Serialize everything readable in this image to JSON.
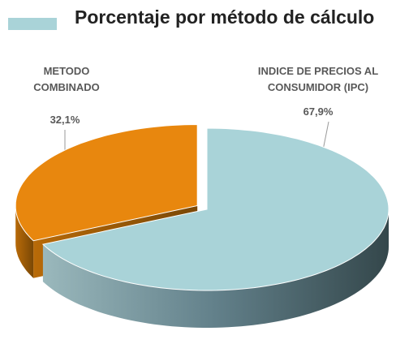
{
  "chart_data": {
    "type": "pie3d",
    "title": "Porcentaje por método de cálculo",
    "categories": [
      "INDICE DE PRECIOS AL CONSUMIDOR (IPC)",
      "METODO COMBINADO"
    ],
    "values": [
      67.9,
      32.1
    ],
    "value_labels": [
      "67,9%",
      "32,1%"
    ],
    "colors": [
      "#a9d3d8",
      "#e8870e"
    ],
    "exploded": [
      false,
      true
    ]
  }
}
